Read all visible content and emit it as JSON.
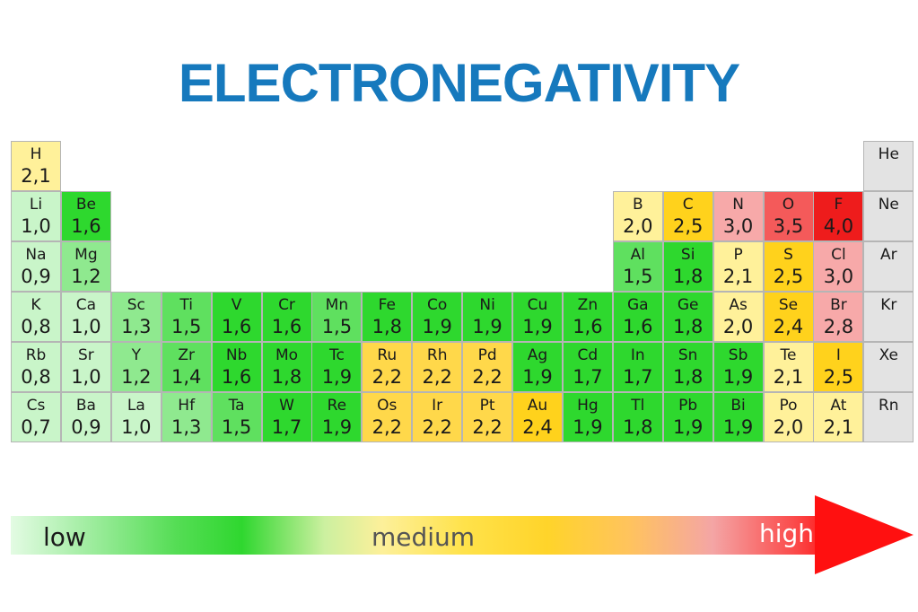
{
  "title": "ELECTRONEGATIVITY",
  "colors": {
    "title": "#1679bd",
    "noble_gas": "#e3e3e3",
    "low": "#e3fbe3",
    "medium": "#ffe24a",
    "high": "#ff1010",
    "border": "#b5b5b5"
  },
  "scale": {
    "low": "low",
    "medium": "medium",
    "high": "high"
  },
  "elements": [
    {
      "symbol": "H",
      "value": "2,1",
      "period": 1,
      "group": 1
    },
    {
      "symbol": "He",
      "value": "",
      "period": 1,
      "group": 18
    },
    {
      "symbol": "Li",
      "value": "1,0",
      "period": 2,
      "group": 1
    },
    {
      "symbol": "Be",
      "value": "1,6",
      "period": 2,
      "group": 2
    },
    {
      "symbol": "B",
      "value": "2,0",
      "period": 2,
      "group": 13
    },
    {
      "symbol": "C",
      "value": "2,5",
      "period": 2,
      "group": 14
    },
    {
      "symbol": "N",
      "value": "3,0",
      "period": 2,
      "group": 15
    },
    {
      "symbol": "O",
      "value": "3,5",
      "period": 2,
      "group": 16
    },
    {
      "symbol": "F",
      "value": "4,0",
      "period": 2,
      "group": 17
    },
    {
      "symbol": "Ne",
      "value": "",
      "period": 2,
      "group": 18
    },
    {
      "symbol": "Na",
      "value": "0,9",
      "period": 3,
      "group": 1
    },
    {
      "symbol": "Mg",
      "value": "1,2",
      "period": 3,
      "group": 2
    },
    {
      "symbol": "Al",
      "value": "1,5",
      "period": 3,
      "group": 13
    },
    {
      "symbol": "Si",
      "value": "1,8",
      "period": 3,
      "group": 14
    },
    {
      "symbol": "P",
      "value": "2,1",
      "period": 3,
      "group": 15
    },
    {
      "symbol": "S",
      "value": "2,5",
      "period": 3,
      "group": 16
    },
    {
      "symbol": "Cl",
      "value": "3,0",
      "period": 3,
      "group": 17
    },
    {
      "symbol": "Ar",
      "value": "",
      "period": 3,
      "group": 18
    },
    {
      "symbol": "K",
      "value": "0,8",
      "period": 4,
      "group": 1
    },
    {
      "symbol": "Ca",
      "value": "1,0",
      "period": 4,
      "group": 2
    },
    {
      "symbol": "Sc",
      "value": "1,3",
      "period": 4,
      "group": 3
    },
    {
      "symbol": "Ti",
      "value": "1,5",
      "period": 4,
      "group": 4
    },
    {
      "symbol": "V",
      "value": "1,6",
      "period": 4,
      "group": 5
    },
    {
      "symbol": "Cr",
      "value": "1,6",
      "period": 4,
      "group": 6
    },
    {
      "symbol": "Mn",
      "value": "1,5",
      "period": 4,
      "group": 7
    },
    {
      "symbol": "Fe",
      "value": "1,8",
      "period": 4,
      "group": 8
    },
    {
      "symbol": "Co",
      "value": "1,9",
      "period": 4,
      "group": 9
    },
    {
      "symbol": "Ni",
      "value": "1,9",
      "period": 4,
      "group": 10
    },
    {
      "symbol": "Cu",
      "value": "1,9",
      "period": 4,
      "group": 11
    },
    {
      "symbol": "Zn",
      "value": "1,6",
      "period": 4,
      "group": 12
    },
    {
      "symbol": "Ga",
      "value": "1,6",
      "period": 4,
      "group": 13
    },
    {
      "symbol": "Ge",
      "value": "1,8",
      "period": 4,
      "group": 14
    },
    {
      "symbol": "As",
      "value": "2,0",
      "period": 4,
      "group": 15
    },
    {
      "symbol": "Se",
      "value": "2,4",
      "period": 4,
      "group": 16
    },
    {
      "symbol": "Br",
      "value": "2,8",
      "period": 4,
      "group": 17
    },
    {
      "symbol": "Kr",
      "value": "",
      "period": 4,
      "group": 18
    },
    {
      "symbol": "Rb",
      "value": "0,8",
      "period": 5,
      "group": 1
    },
    {
      "symbol": "Sr",
      "value": "1,0",
      "period": 5,
      "group": 2
    },
    {
      "symbol": "Y",
      "value": "1,2",
      "period": 5,
      "group": 3
    },
    {
      "symbol": "Zr",
      "value": "1,4",
      "period": 5,
      "group": 4
    },
    {
      "symbol": "Nb",
      "value": "1,6",
      "period": 5,
      "group": 5
    },
    {
      "symbol": "Mo",
      "value": "1,8",
      "period": 5,
      "group": 6
    },
    {
      "symbol": "Tc",
      "value": "1,9",
      "period": 5,
      "group": 7
    },
    {
      "symbol": "Ru",
      "value": "2,2",
      "period": 5,
      "group": 8
    },
    {
      "symbol": "Rh",
      "value": "2,2",
      "period": 5,
      "group": 9
    },
    {
      "symbol": "Pd",
      "value": "2,2",
      "period": 5,
      "group": 10
    },
    {
      "symbol": "Ag",
      "value": "1,9",
      "period": 5,
      "group": 11
    },
    {
      "symbol": "Cd",
      "value": "1,7",
      "period": 5,
      "group": 12
    },
    {
      "symbol": "In",
      "value": "1,7",
      "period": 5,
      "group": 13
    },
    {
      "symbol": "Sn",
      "value": "1,8",
      "period": 5,
      "group": 14
    },
    {
      "symbol": "Sb",
      "value": "1,9",
      "period": 5,
      "group": 15
    },
    {
      "symbol": "Te",
      "value": "2,1",
      "period": 5,
      "group": 16
    },
    {
      "symbol": "I",
      "value": "2,5",
      "period": 5,
      "group": 17
    },
    {
      "symbol": "Xe",
      "value": "",
      "period": 5,
      "group": 18
    },
    {
      "symbol": "Cs",
      "value": "0,7",
      "period": 6,
      "group": 1
    },
    {
      "symbol": "Ba",
      "value": "0,9",
      "period": 6,
      "group": 2
    },
    {
      "symbol": "La",
      "value": "1,0",
      "period": 6,
      "group": 3
    },
    {
      "symbol": "Hf",
      "value": "1,3",
      "period": 6,
      "group": 4
    },
    {
      "symbol": "Ta",
      "value": "1,5",
      "period": 6,
      "group": 5
    },
    {
      "symbol": "W",
      "value": "1,7",
      "period": 6,
      "group": 6
    },
    {
      "symbol": "Re",
      "value": "1,9",
      "period": 6,
      "group": 7
    },
    {
      "symbol": "Os",
      "value": "2,2",
      "period": 6,
      "group": 8
    },
    {
      "symbol": "Ir",
      "value": "2,2",
      "period": 6,
      "group": 9
    },
    {
      "symbol": "Pt",
      "value": "2,2",
      "period": 6,
      "group": 10
    },
    {
      "symbol": "Au",
      "value": "2,4",
      "period": 6,
      "group": 11
    },
    {
      "symbol": "Hg",
      "value": "1,9",
      "period": 6,
      "group": 12
    },
    {
      "symbol": "Tl",
      "value": "1,8",
      "period": 6,
      "group": 13
    },
    {
      "symbol": "Pb",
      "value": "1,9",
      "period": 6,
      "group": 14
    },
    {
      "symbol": "Bi",
      "value": "1,9",
      "period": 6,
      "group": 15
    },
    {
      "symbol": "Po",
      "value": "2,0",
      "period": 6,
      "group": 16
    },
    {
      "symbol": "At",
      "value": "2,1",
      "period": 6,
      "group": 17
    },
    {
      "symbol": "Rn",
      "value": "",
      "period": 6,
      "group": 18
    }
  ]
}
